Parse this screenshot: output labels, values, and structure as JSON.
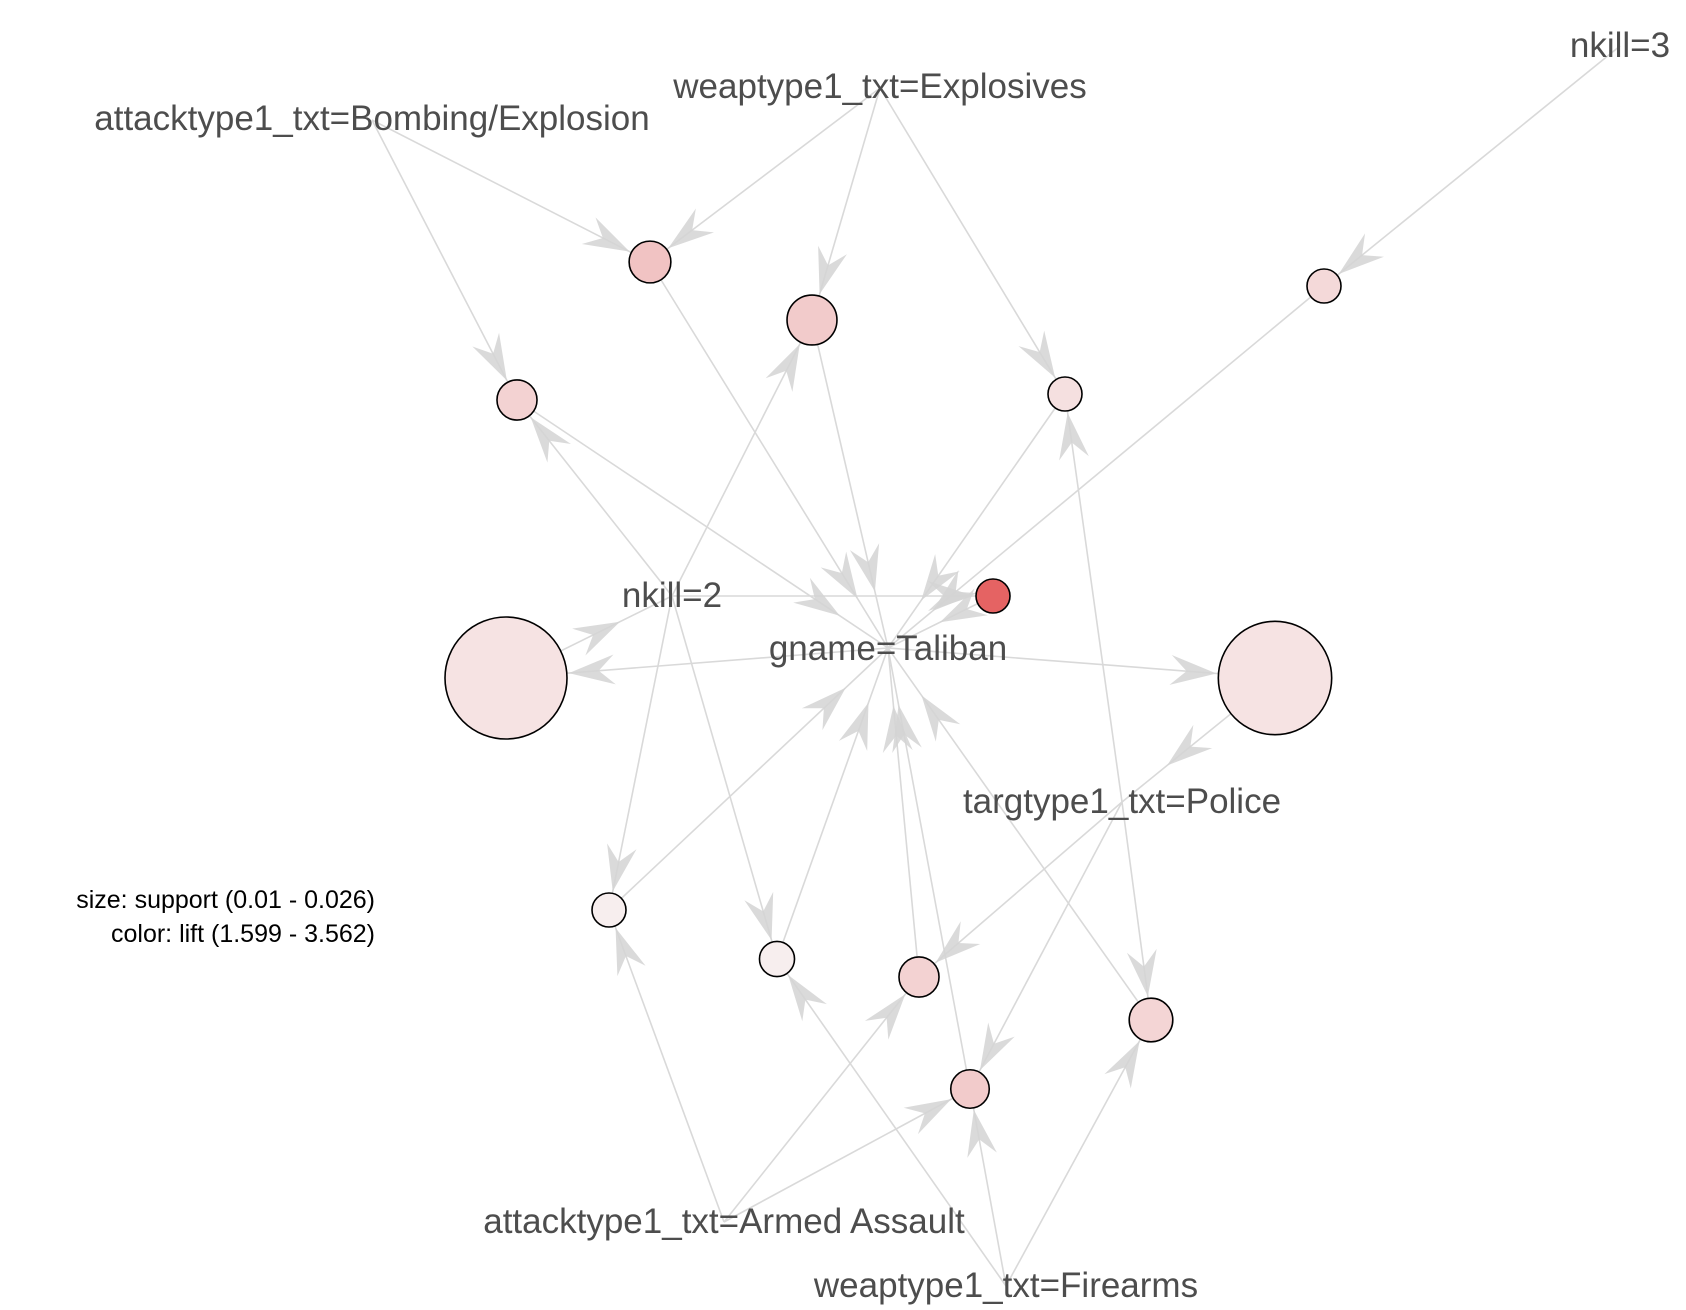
{
  "item_nodes": [
    {
      "id": "bombing",
      "label": "attacktype1_txt=Bombing/Explosion"
    },
    {
      "id": "explosives",
      "label": "weaptype1_txt=Explosives"
    },
    {
      "id": "nkill3",
      "label": "nkill=3"
    },
    {
      "id": "nkill2",
      "label": "nkill=2"
    },
    {
      "id": "taliban",
      "label": "gname=Taliban"
    },
    {
      "id": "police",
      "label": "targtype1_txt=Police"
    },
    {
      "id": "armed",
      "label": "attacktype1_txt=Armed Assault"
    },
    {
      "id": "firearms",
      "label": "weaptype1_txt=Firearms"
    }
  ],
  "rule_nodes": [
    {
      "id": "r1",
      "lift": 2.2,
      "support": 0.0135,
      "lhs": [
        "bombing",
        "explosives"
      ],
      "rhs": "taliban"
    },
    {
      "id": "r2",
      "lift": 2.1,
      "support": 0.0155,
      "lhs": [
        "explosives",
        "nkill2"
      ],
      "rhs": "taliban"
    },
    {
      "id": "r3",
      "lift": 1.9,
      "support": 0.01,
      "lhs": [
        "nkill3"
      ],
      "rhs": "taliban"
    },
    {
      "id": "r4",
      "lift": 2.0,
      "support": 0.013,
      "lhs": [
        "bombing",
        "nkill2"
      ],
      "rhs": "taliban"
    },
    {
      "id": "r5",
      "lift": 1.8,
      "support": 0.01,
      "lhs": [
        "explosives",
        "police"
      ],
      "rhs": "taliban"
    },
    {
      "id": "r6",
      "lift": 3.562,
      "support": 0.01,
      "lhs": [
        "nkill2"
      ],
      "rhs": "taliban"
    },
    {
      "id": "r7",
      "lift": 1.75,
      "support": 0.026,
      "lhs": [
        "taliban"
      ],
      "rhs": "nkill2"
    },
    {
      "id": "r8",
      "lift": 1.75,
      "support": 0.025,
      "lhs": [
        "taliban"
      ],
      "rhs": "police"
    },
    {
      "id": "r9",
      "lift": 1.6,
      "support": 0.01,
      "lhs": [
        "nkill2",
        "armed"
      ],
      "rhs": "taliban"
    },
    {
      "id": "r10",
      "lift": 1.599,
      "support": 0.011,
      "lhs": [
        "nkill2",
        "firearms"
      ],
      "rhs": "taliban"
    },
    {
      "id": "r11",
      "lift": 2.0,
      "support": 0.013,
      "lhs": [
        "police",
        "armed"
      ],
      "rhs": "taliban"
    },
    {
      "id": "r12",
      "lift": 2.1,
      "support": 0.0125,
      "lhs": [
        "police",
        "armed",
        "firearms"
      ],
      "rhs": "taliban"
    },
    {
      "id": "r13",
      "lift": 1.95,
      "support": 0.014,
      "lhs": [
        "police",
        "firearms"
      ],
      "rhs": "taliban"
    }
  ],
  "legend": {
    "size_line": "size: support (0.01 - 0.026)",
    "color_line": "color: lift (1.599 - 3.562)",
    "support_range": [
      0.01,
      0.026
    ],
    "lift_range": [
      1.599,
      3.562
    ]
  },
  "colors": {
    "edge": "#d9d9d9",
    "arrow": "#d3d3d3",
    "label_text": "#4d4d4d",
    "low_lift": "#f7eeee",
    "high_lift": "#e56363"
  }
}
